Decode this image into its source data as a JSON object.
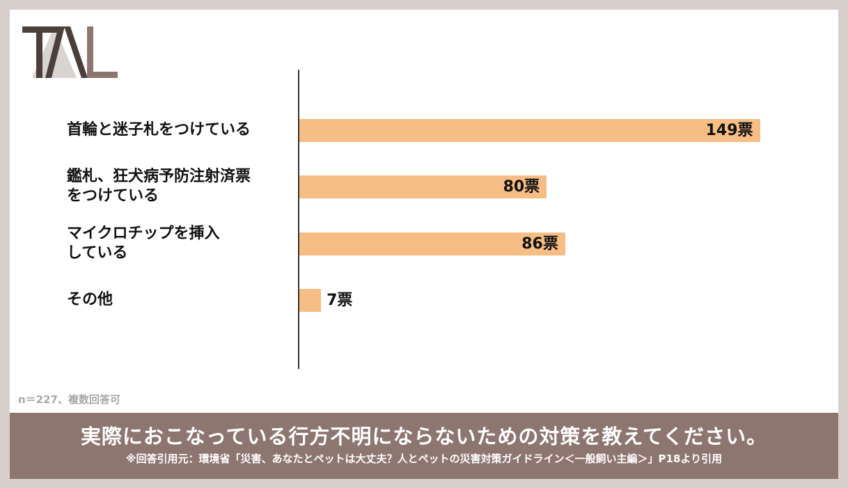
{
  "logo": {
    "text": "TAL"
  },
  "chart_data": {
    "type": "bar",
    "orientation": "horizontal",
    "categories": [
      "首輪と迷子札をつけている",
      "鑑札、狂犬病予防注射済票をつけている",
      "マイクロチップを挿入している",
      "その他"
    ],
    "category_lines": [
      [
        "首輪と迷子札をつけている"
      ],
      [
        "鑑札、狂犬病予防注射済票",
        "をつけている"
      ],
      [
        "マイクロチップを挿入",
        "している"
      ],
      [
        "その他"
      ]
    ],
    "values": [
      149,
      80,
      86,
      7
    ],
    "value_labels": [
      "149票",
      "80票",
      "86票",
      "7票"
    ],
    "bar_color": "#f6be85",
    "xlim": [
      0,
      160
    ]
  },
  "note": "n＝227、複数回答可",
  "banner": {
    "question": "実際におこなっている行方不明にならないための対策を教えてください。",
    "source": "※回答引用元：環境省「災害、あなたとペットは大丈夫？人とペットの災害対策ガイドライン＜一般飼い主編＞」P18より引用",
    "background": "#8e7670"
  }
}
